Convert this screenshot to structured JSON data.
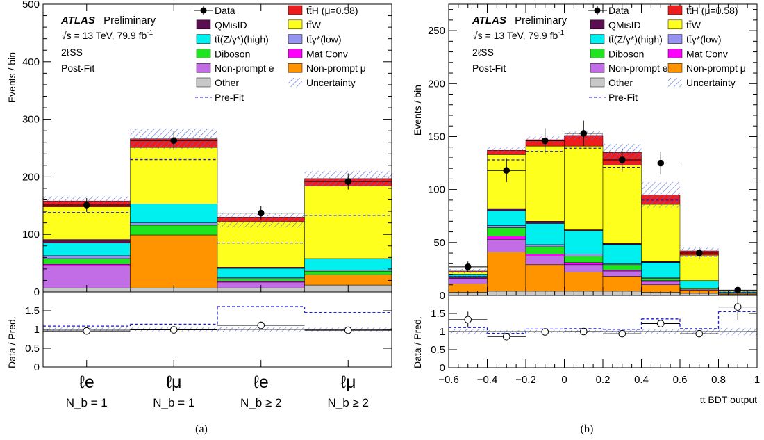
{
  "chart_data": [
    {
      "type": "bar",
      "stacked": true,
      "panel_label": "(a)",
      "ylabel": "Events / bin",
      "ylim": [
        0,
        500
      ],
      "yticks": [
        0,
        100,
        200,
        300,
        400,
        500
      ],
      "categories": [
        "ℓe",
        "ℓμ",
        "ℓe",
        "ℓμ"
      ],
      "category_sublabels": [
        "N_b = 1",
        "N_b = 1",
        "N_b ≥ 2",
        "N_b ≥ 2"
      ],
      "series": [
        {
          "name": "Other",
          "values": [
            7,
            7,
            7,
            12
          ]
        },
        {
          "name": "Non-prompt μ",
          "values": [
            0,
            92,
            0,
            18
          ]
        },
        {
          "name": "Non-prompt e",
          "values": [
            38,
            0,
            10,
            0
          ]
        },
        {
          "name": "Mat Conv",
          "values": [
            3,
            0,
            2,
            0
          ]
        },
        {
          "name": "Diboson",
          "values": [
            10,
            17,
            4,
            6
          ]
        },
        {
          "name": "tt̄γ*(low)",
          "values": [
            5,
            4,
            2,
            2
          ]
        },
        {
          "name": "tt̄(Z/γ*)(high)",
          "values": [
            22,
            33,
            16,
            20
          ]
        },
        {
          "name": "QMisID",
          "values": [
            6,
            0,
            2,
            0
          ]
        },
        {
          "name": "tt̄W",
          "values": [
            57,
            98,
            79,
            126
          ]
        },
        {
          "name": "tt̄H (μ=0.58)",
          "values": [
            10,
            15,
            8,
            13
          ]
        }
      ],
      "prefit": [
        138,
        230,
        85,
        133
      ],
      "total_postfit": [
        158,
        266,
        124,
        197
      ],
      "uncertainty_up": [
        166,
        284,
        136,
        210
      ],
      "data": [
        151,
        263,
        137,
        192
      ],
      "data_err": [
        12,
        16,
        12,
        14
      ],
      "ratio": {
        "ylabel": "Data / Pred.",
        "ylim": [
          0,
          2
        ],
        "yticks": [
          "0",
          "0.5",
          "1",
          "1.5"
        ],
        "values": [
          0.96,
          0.99,
          1.11,
          0.98
        ],
        "errors": [
          0.06,
          0.05,
          0.1,
          0.05
        ],
        "prefit": [
          1.09,
          1.14,
          1.61,
          1.45
        ],
        "unc_band": [
          0.05,
          0.05,
          0.06,
          0.05
        ]
      }
    },
    {
      "type": "bar",
      "stacked": true,
      "panel_label": "(b)",
      "ylabel": "Events / bin",
      "xlabel": "tt̄ BDT output",
      "ylim": [
        0,
        275
      ],
      "yticks": [
        0,
        50,
        100,
        150,
        200,
        250
      ],
      "xlim": [
        -0.6,
        1
      ],
      "xticks": [
        "−0.6",
        "−0.4",
        "−0.2",
        "0",
        "0.2",
        "0.4",
        "0.6",
        "0.8",
        "1"
      ],
      "bin_edges": [
        -0.6,
        -0.4,
        -0.2,
        0,
        0.2,
        0.4,
        0.6,
        0.8,
        1.0
      ],
      "series": [
        {
          "name": "Other",
          "values": [
            3,
            4,
            4,
            4,
            4,
            3,
            2,
            1
          ]
        },
        {
          "name": "Non-prompt μ",
          "values": [
            8,
            37,
            25,
            18,
            14,
            7,
            3,
            1
          ]
        },
        {
          "name": "Non-prompt e",
          "values": [
            5,
            12,
            8,
            7,
            5,
            3,
            1,
            0
          ]
        },
        {
          "name": "Mat Conv",
          "values": [
            1,
            3,
            2,
            2,
            1,
            1,
            0,
            0
          ]
        },
        {
          "name": "Diboson",
          "values": [
            1,
            8,
            7,
            6,
            5,
            2,
            1,
            0
          ]
        },
        {
          "name": "tt̄γ*(low)",
          "values": [
            0,
            2,
            2,
            2,
            1,
            1,
            0,
            0
          ]
        },
        {
          "name": "tt̄(Z/γ*)(high)",
          "values": [
            2,
            14,
            20,
            22,
            18,
            14,
            7,
            1
          ]
        },
        {
          "name": "QMisID",
          "values": [
            0,
            2,
            2,
            1,
            1,
            1,
            0,
            0
          ]
        },
        {
          "name": "tt̄W",
          "values": [
            2,
            51,
            71,
            79,
            74,
            54,
            24,
            1
          ]
        },
        {
          "name": "tt̄H (μ=0.58)",
          "values": [
            1,
            4,
            6,
            10,
            12,
            9,
            4,
            0
          ]
        }
      ],
      "prefit": [
        18,
        128,
        136,
        139,
        121,
        90,
        37,
        3
      ],
      "total_postfit": [
        23,
        137,
        147,
        151,
        135,
        95,
        42,
        4
      ],
      "uncertainty_up": [
        25,
        140,
        150,
        155,
        143,
        107,
        45,
        5
      ],
      "data": [
        27,
        118,
        146,
        153,
        128,
        125,
        40,
        5
      ],
      "data_err": [
        5,
        11,
        12,
        12,
        11,
        11,
        6,
        2
      ],
      "ratio": {
        "ylabel": "Data / Pred.",
        "ylim": [
          0,
          2
        ],
        "yticks": [
          "0",
          "0.5",
          "1",
          "1.5"
        ],
        "values": [
          1.33,
          0.86,
          0.99,
          1.0,
          0.94,
          1.22,
          0.94,
          1.68
        ],
        "errors": [
          0.22,
          0.05,
          0.06,
          0.06,
          0.05,
          0.08,
          0.1,
          0.35
        ],
        "prefit": [
          1.11,
          0.95,
          1.07,
          1.08,
          1.06,
          1.35,
          1.08,
          1.55
        ],
        "unc_band": [
          0.07,
          0.04,
          0.04,
          0.04,
          0.04,
          0.06,
          0.06,
          0.1
        ]
      }
    }
  ],
  "atlas_label": "ATLAS",
  "preliminary_label": "Preliminary",
  "energy_label": "√s = 13 TeV, 79.9 fb",
  "lumi_exponent": "-1",
  "channel_label": "2ℓSS",
  "fit_label": "Post-Fit",
  "legend": [
    {
      "label": "Data",
      "kind": "data",
      "color": "#000000"
    },
    {
      "label": "tt̄H (μ=0.58)",
      "kind": "box",
      "color": "#ee1c1c"
    },
    {
      "label": "QMisID",
      "kind": "box",
      "color": "#5c0c50"
    },
    {
      "label": "tt̄W",
      "kind": "box",
      "color": "#ffff1e"
    },
    {
      "label": "tt̄(Z/γ*)(high)",
      "kind": "box",
      "color": "#00f0f0"
    },
    {
      "label": "tt̄γ*(low)",
      "kind": "box",
      "color": "#9494f0"
    },
    {
      "label": "Diboson",
      "kind": "box",
      "color": "#1ee61e"
    },
    {
      "label": "Mat Conv",
      "kind": "box",
      "color": "#ff00ff"
    },
    {
      "label": "Non-prompt e",
      "kind": "box",
      "color": "#c26ce6"
    },
    {
      "label": "Non-prompt μ",
      "kind": "box",
      "color": "#ff9400"
    },
    {
      "label": "Other",
      "kind": "box",
      "color": "#c8c8c8"
    },
    {
      "label": "Uncertainty",
      "kind": "hatch",
      "color": "#5a6adc"
    },
    {
      "label": "Pre-Fit",
      "kind": "dash",
      "color": "#1a1ad6"
    }
  ],
  "colors": {
    "tt̄H (μ=0.58)": "#ee1c1c",
    "QMisID": "#5c0c50",
    "tt̄W": "#ffff1e",
    "tt̄(Z/γ*)(high)": "#00f0f0",
    "tt̄γ*(low)": "#9494f0",
    "Diboson": "#1ee61e",
    "Mat Conv": "#ff00ff",
    "Non-prompt e": "#c26ce6",
    "Non-prompt μ": "#ff9400",
    "Other": "#c8c8c8",
    "prefit": "#1a1ad6",
    "hatch": "#5a6adc"
  }
}
